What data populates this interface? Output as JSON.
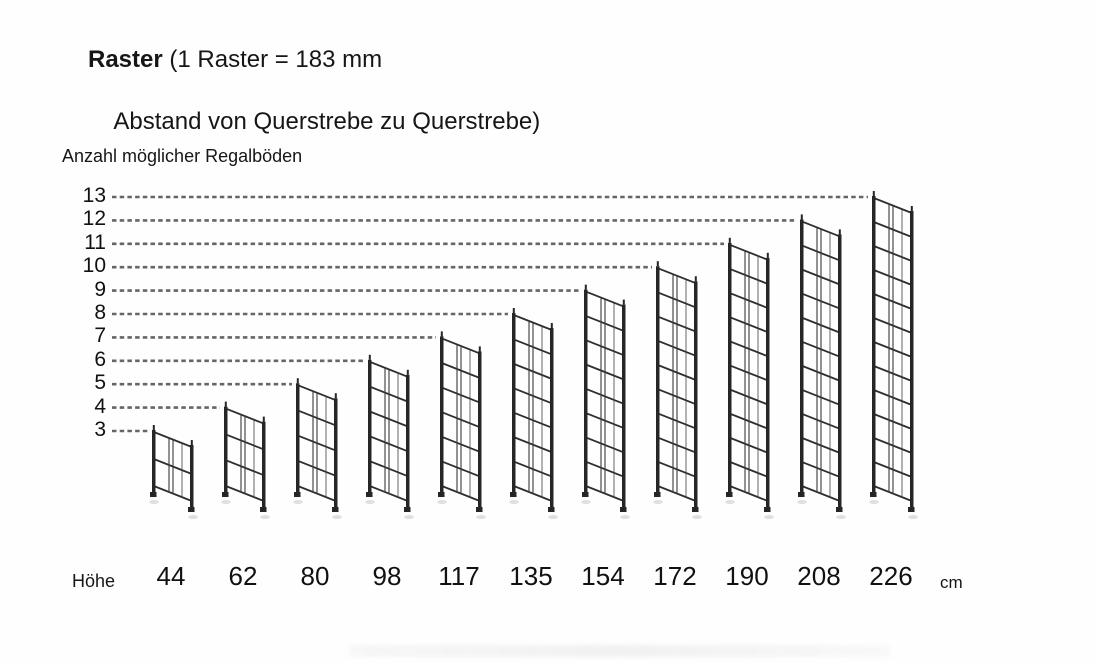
{
  "title": {
    "line1_bold": "Raster",
    "line1_rest": " (1 Raster = 183 mm",
    "line2": "Abstand von Querstrebe zu Querstrebe)"
  },
  "axis_label": "Anzahl möglicher Regalböden",
  "footer": {
    "hoehe_label": "Höhe",
    "unit": "cm"
  },
  "diagram": {
    "raster_mm": 183,
    "levels_shown": [
      13,
      12,
      11,
      10,
      9,
      8,
      7,
      6,
      5,
      4,
      3
    ],
    "racks": [
      {
        "hoehe": "44",
        "boeden": 3
      },
      {
        "hoehe": "62",
        "boeden": 4
      },
      {
        "hoehe": "80",
        "boeden": 5
      },
      {
        "hoehe": "98",
        "boeden": 6
      },
      {
        "hoehe": "117",
        "boeden": 7
      },
      {
        "hoehe": "135",
        "boeden": 8
      },
      {
        "hoehe": "154",
        "boeden": 9
      },
      {
        "hoehe": "172",
        "boeden": 10
      },
      {
        "hoehe": "190",
        "boeden": 11
      },
      {
        "hoehe": "208",
        "boeden": 12
      },
      {
        "hoehe": "226",
        "boeden": 13
      }
    ]
  },
  "chart_data": {
    "type": "table",
    "title": "Raster (1 Raster = 183 mm Abstand von Querstrebe zu Querstrebe)",
    "ylabel": "Anzahl möglicher Regalböden",
    "xlabel": "Höhe (cm)",
    "categories": [
      "44",
      "62",
      "80",
      "98",
      "117",
      "135",
      "154",
      "172",
      "190",
      "208",
      "226"
    ],
    "values": [
      3,
      4,
      5,
      6,
      7,
      8,
      9,
      10,
      11,
      12,
      13
    ],
    "ylim": [
      3,
      13
    ]
  },
  "colors": {
    "text": "#161616",
    "frame": "#262626",
    "rung": "#2e2e2e",
    "dash": "#666666",
    "shadow": "#9a9a9a"
  }
}
